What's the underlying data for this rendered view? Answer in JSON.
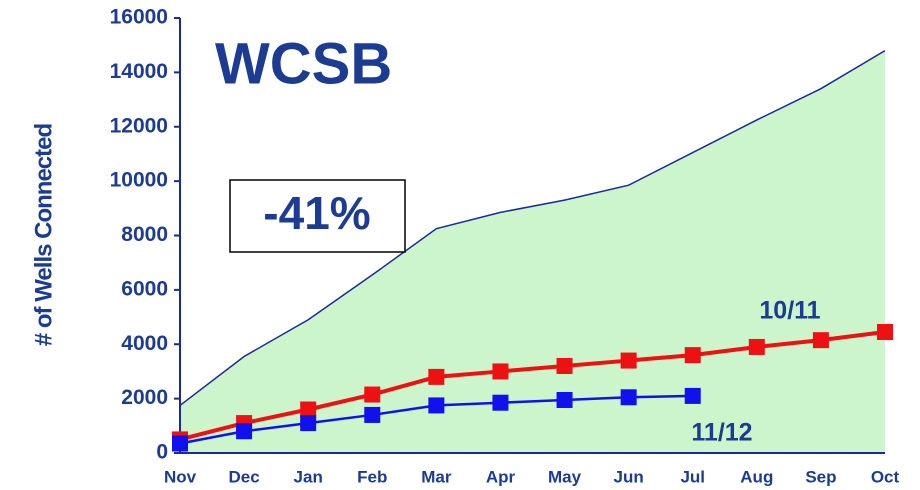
{
  "chart_data": {
    "type": "line",
    "y_label": "# of Wells Connected",
    "annotations": [
      "WCSB",
      "-41%"
    ],
    "categories": [
      "Nov",
      "Dec",
      "Jan",
      "Feb",
      "Mar",
      "Apr",
      "May",
      "Jun",
      "Jul",
      "Aug",
      "Sep",
      "Oct"
    ],
    "area": {
      "color": "#ccf5cc",
      "line_color": "#1a2a99",
      "values": [
        1750,
        3550,
        4900,
        6550,
        8250,
        8850,
        9300,
        9850,
        11050,
        12250,
        13400,
        14800
      ]
    },
    "series": [
      {
        "name": "10/11",
        "color": "#ee1111",
        "values": [
          500,
          1100,
          1600,
          2150,
          2800,
          3000,
          3200,
          3400,
          3600,
          3900,
          4150,
          4450
        ]
      },
      {
        "name": "11/12",
        "color": "#1111ee",
        "values": [
          350,
          800,
          1100,
          1400,
          1750,
          1850,
          1950,
          2050,
          2100,
          null,
          null,
          null
        ]
      }
    ],
    "ylim": [
      0,
      16000
    ],
    "yticks": [
      0,
      2000,
      4000,
      6000,
      8000,
      10000,
      12000,
      14000,
      16000
    ]
  }
}
